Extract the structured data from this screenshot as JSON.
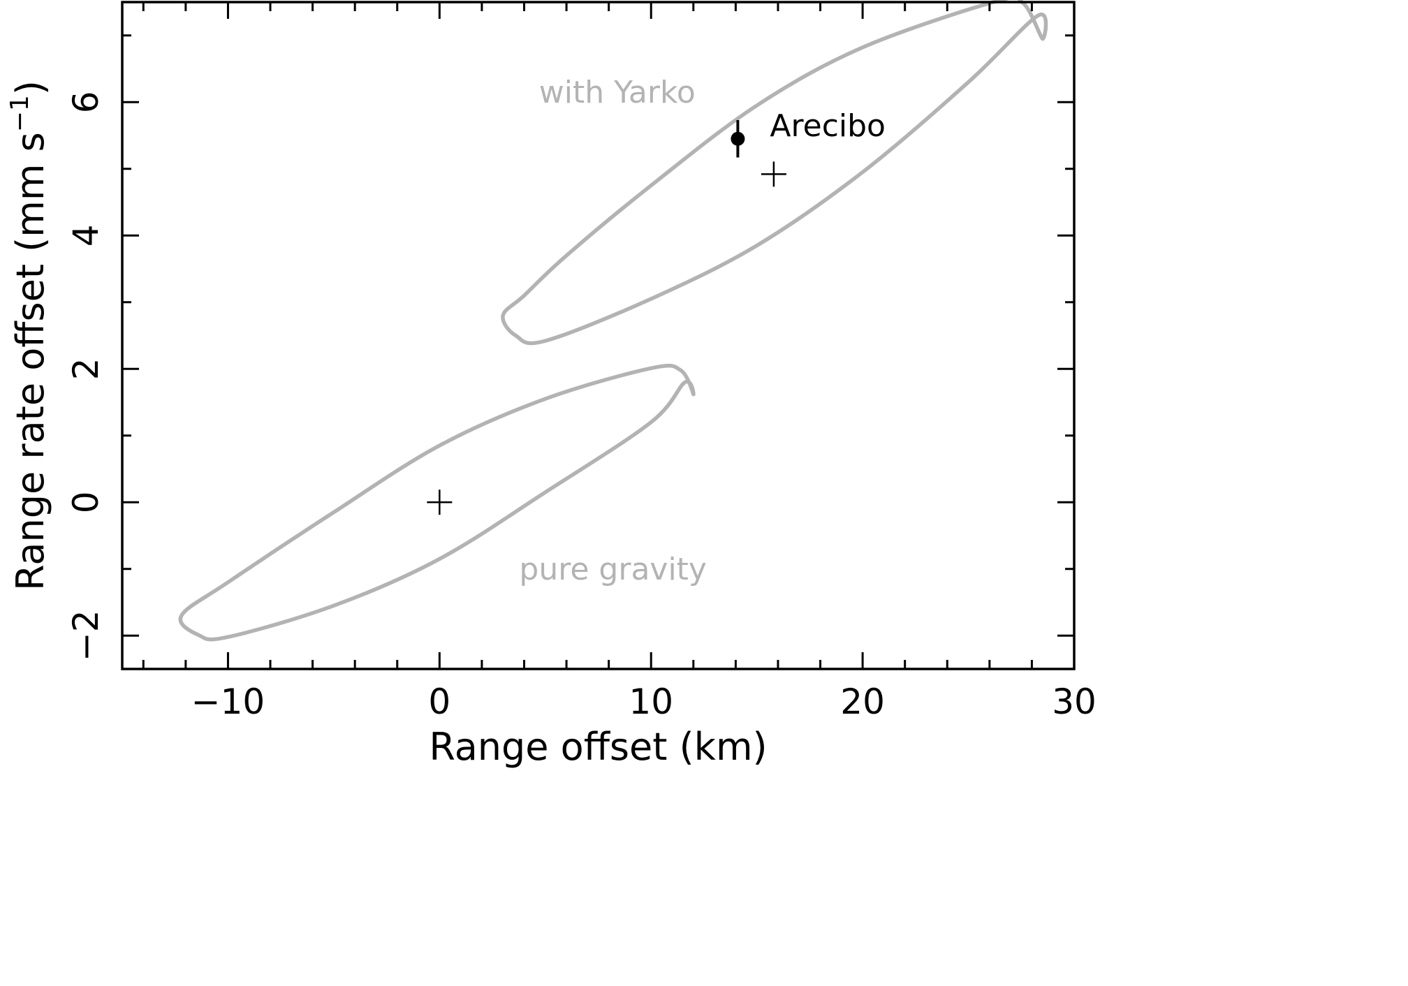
{
  "chart_data": {
    "type": "scatter",
    "title": "",
    "xlabel": "Range offset (km)",
    "ylabel_main": "Range rate offset (mm s",
    "ylabel_sup": "−1",
    "ylabel_close": ")",
    "xlim": [
      -15,
      30
    ],
    "ylim": [
      -2.5,
      7.5
    ],
    "x_ticks": [
      {
        "value": -10,
        "label": "−10"
      },
      {
        "value": 0,
        "label": "0"
      },
      {
        "value": 10,
        "label": "10"
      },
      {
        "value": 20,
        "label": "20"
      },
      {
        "value": 30,
        "label": "30"
      }
    ],
    "x_minor_step": 2,
    "y_ticks": [
      {
        "value": -2,
        "label": "−2"
      },
      {
        "value": 0,
        "label": "0"
      },
      {
        "value": 2,
        "label": "2"
      },
      {
        "value": 4,
        "label": "4"
      },
      {
        "value": 6,
        "label": "6"
      }
    ],
    "y_minor_step": 1,
    "grid": false,
    "ellipses": [
      {
        "name": "pure gravity",
        "color": "#b3b3b3",
        "points": [
          [
            -12.2,
            -1.7
          ],
          [
            -11.4,
            -1.99
          ],
          [
            -10,
            -2.02
          ],
          [
            -5,
            -1.55
          ],
          [
            0,
            -0.85
          ],
          [
            5,
            0.15
          ],
          [
            10,
            1.2
          ],
          [
            11.6,
            1.8
          ],
          [
            12,
            1.62
          ],
          [
            11.4,
            1.98
          ],
          [
            10,
            2.01
          ],
          [
            5,
            1.55
          ],
          [
            0,
            0.85
          ],
          [
            -5,
            -0.15
          ],
          [
            -10,
            -1.2
          ]
        ]
      },
      {
        "name": "with Yarko",
        "color": "#b3b3b3",
        "points": [
          [
            3,
            2.8
          ],
          [
            3.6,
            2.5
          ],
          [
            5,
            2.42
          ],
          [
            10,
            3.05
          ],
          [
            15,
            3.85
          ],
          [
            20,
            4.95
          ],
          [
            25,
            6.3
          ],
          [
            28.3,
            7.3
          ],
          [
            28.5,
            6.95
          ],
          [
            27.6,
            7.48
          ],
          [
            26.3,
            7.51
          ],
          [
            20,
            6.82
          ],
          [
            15,
            5.95
          ],
          [
            10,
            4.75
          ],
          [
            6,
            3.7
          ],
          [
            4,
            3.1
          ]
        ]
      }
    ],
    "markers": [
      {
        "x": 0,
        "y": 0,
        "symbol": "plus"
      },
      {
        "x": 15.8,
        "y": 4.92,
        "symbol": "plus"
      }
    ],
    "measurement": {
      "label": "Arecibo",
      "x": 14.1,
      "y": 5.45,
      "err": 0.28
    },
    "annotations": [
      {
        "text": "with Yarko",
        "x": 8.4,
        "y": 6.15,
        "color": "#b3b3b3"
      },
      {
        "text": "pure gravity",
        "x": 8.2,
        "y": -1.0,
        "color": "#b3b3b3"
      }
    ]
  }
}
